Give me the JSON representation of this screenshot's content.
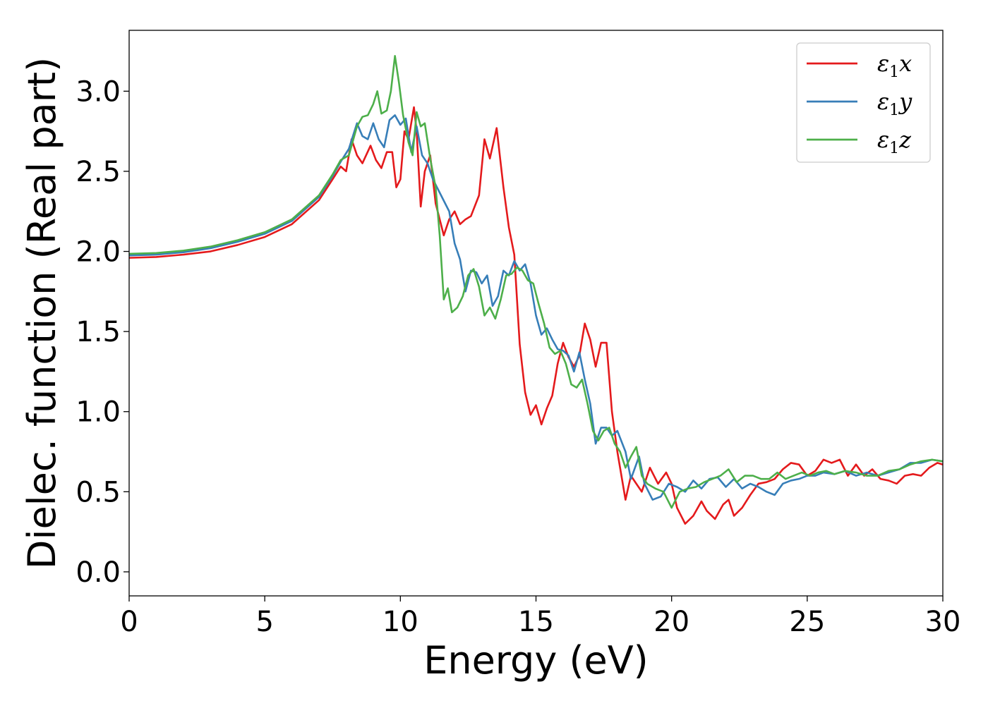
{
  "chart_data": {
    "type": "line",
    "title": "",
    "xlabel": "Energy (eV)",
    "ylabel": "Dielec. function (Real part)",
    "xlim": [
      0,
      30
    ],
    "ylim": [
      -0.15,
      3.38
    ],
    "xticks": [
      0,
      5,
      10,
      15,
      20,
      25,
      30
    ],
    "xtick_labels": [
      "0",
      "5",
      "10",
      "15",
      "20",
      "25",
      "30"
    ],
    "yticks": [
      0.0,
      0.5,
      1.0,
      1.5,
      2.0,
      2.5,
      3.0
    ],
    "ytick_labels": [
      "0.0",
      "0.5",
      "1.0",
      "1.5",
      "2.0",
      "2.5",
      "3.0"
    ],
    "grid": false,
    "legend_position": "top-right",
    "series": [
      {
        "name": "ε1x",
        "legend_base": "ε",
        "legend_sub": "1",
        "legend_suffix": "x",
        "color": "#e41a1c",
        "points": [
          [
            0,
            1.96
          ],
          [
            1,
            1.965
          ],
          [
            2,
            1.98
          ],
          [
            3,
            2.0
          ],
          [
            4,
            2.04
          ],
          [
            5,
            2.09
          ],
          [
            6,
            2.17
          ],
          [
            7,
            2.32
          ],
          [
            7.5,
            2.45
          ],
          [
            7.8,
            2.53
          ],
          [
            8.0,
            2.5
          ],
          [
            8.2,
            2.7
          ],
          [
            8.4,
            2.6
          ],
          [
            8.6,
            2.55
          ],
          [
            8.9,
            2.66
          ],
          [
            9.1,
            2.57
          ],
          [
            9.3,
            2.52
          ],
          [
            9.5,
            2.62
          ],
          [
            9.7,
            2.62
          ],
          [
            9.85,
            2.4
          ],
          [
            10.0,
            2.45
          ],
          [
            10.15,
            2.75
          ],
          [
            10.3,
            2.7
          ],
          [
            10.5,
            2.9
          ],
          [
            10.6,
            2.75
          ],
          [
            10.75,
            2.28
          ],
          [
            10.9,
            2.5
          ],
          [
            11.1,
            2.6
          ],
          [
            11.3,
            2.3
          ],
          [
            11.6,
            2.1
          ],
          [
            11.8,
            2.2
          ],
          [
            12.0,
            2.25
          ],
          [
            12.2,
            2.17
          ],
          [
            12.4,
            2.2
          ],
          [
            12.6,
            2.22
          ],
          [
            12.9,
            2.35
          ],
          [
            13.1,
            2.7
          ],
          [
            13.3,
            2.58
          ],
          [
            13.55,
            2.77
          ],
          [
            13.8,
            2.4
          ],
          [
            14.0,
            2.15
          ],
          [
            14.2,
            1.98
          ],
          [
            14.4,
            1.42
          ],
          [
            14.6,
            1.12
          ],
          [
            14.8,
            0.98
          ],
          [
            15.0,
            1.04
          ],
          [
            15.2,
            0.92
          ],
          [
            15.4,
            1.02
          ],
          [
            15.6,
            1.1
          ],
          [
            15.8,
            1.3
          ],
          [
            16.0,
            1.43
          ],
          [
            16.2,
            1.34
          ],
          [
            16.4,
            1.28
          ],
          [
            16.6,
            1.35
          ],
          [
            16.8,
            1.55
          ],
          [
            17.0,
            1.45
          ],
          [
            17.2,
            1.28
          ],
          [
            17.4,
            1.43
          ],
          [
            17.6,
            1.43
          ],
          [
            17.8,
            1.0
          ],
          [
            18.0,
            0.75
          ],
          [
            18.3,
            0.45
          ],
          [
            18.5,
            0.6
          ],
          [
            18.7,
            0.55
          ],
          [
            18.9,
            0.5
          ],
          [
            19.2,
            0.65
          ],
          [
            19.5,
            0.55
          ],
          [
            19.8,
            0.62
          ],
          [
            20.0,
            0.55
          ],
          [
            20.2,
            0.4
          ],
          [
            20.5,
            0.3
          ],
          [
            20.8,
            0.35
          ],
          [
            21.1,
            0.44
          ],
          [
            21.3,
            0.38
          ],
          [
            21.6,
            0.33
          ],
          [
            21.9,
            0.42
          ],
          [
            22.1,
            0.45
          ],
          [
            22.3,
            0.35
          ],
          [
            22.6,
            0.4
          ],
          [
            22.9,
            0.48
          ],
          [
            23.2,
            0.55
          ],
          [
            23.5,
            0.56
          ],
          [
            23.8,
            0.58
          ],
          [
            24.1,
            0.64
          ],
          [
            24.4,
            0.68
          ],
          [
            24.7,
            0.67
          ],
          [
            25.0,
            0.6
          ],
          [
            25.3,
            0.63
          ],
          [
            25.6,
            0.7
          ],
          [
            25.9,
            0.68
          ],
          [
            26.2,
            0.7
          ],
          [
            26.5,
            0.6
          ],
          [
            26.8,
            0.67
          ],
          [
            27.1,
            0.6
          ],
          [
            27.4,
            0.64
          ],
          [
            27.7,
            0.58
          ],
          [
            28.0,
            0.57
          ],
          [
            28.3,
            0.55
          ],
          [
            28.6,
            0.6
          ],
          [
            28.9,
            0.61
          ],
          [
            29.2,
            0.6
          ],
          [
            29.5,
            0.65
          ],
          [
            29.8,
            0.68
          ],
          [
            30.0,
            0.67
          ]
        ]
      },
      {
        "name": "ε1y",
        "legend_base": "ε",
        "legend_sub": "1",
        "legend_suffix": "y",
        "color": "#377eb8",
        "points": [
          [
            0,
            1.975
          ],
          [
            1,
            1.98
          ],
          [
            2,
            1.995
          ],
          [
            3,
            2.02
          ],
          [
            4,
            2.06
          ],
          [
            5,
            2.11
          ],
          [
            6,
            2.19
          ],
          [
            7,
            2.34
          ],
          [
            7.5,
            2.47
          ],
          [
            7.8,
            2.56
          ],
          [
            8.1,
            2.64
          ],
          [
            8.4,
            2.8
          ],
          [
            8.6,
            2.72
          ],
          [
            8.8,
            2.7
          ],
          [
            9.0,
            2.8
          ],
          [
            9.2,
            2.7
          ],
          [
            9.4,
            2.65
          ],
          [
            9.6,
            2.82
          ],
          [
            9.8,
            2.85
          ],
          [
            10.0,
            2.79
          ],
          [
            10.2,
            2.83
          ],
          [
            10.4,
            2.62
          ],
          [
            10.6,
            2.78
          ],
          [
            10.8,
            2.6
          ],
          [
            11.0,
            2.55
          ],
          [
            11.2,
            2.45
          ],
          [
            11.5,
            2.35
          ],
          [
            11.8,
            2.25
          ],
          [
            12.0,
            2.05
          ],
          [
            12.2,
            1.95
          ],
          [
            12.4,
            1.75
          ],
          [
            12.6,
            1.88
          ],
          [
            12.8,
            1.87
          ],
          [
            13.0,
            1.8
          ],
          [
            13.2,
            1.85
          ],
          [
            13.4,
            1.66
          ],
          [
            13.6,
            1.72
          ],
          [
            13.8,
            1.88
          ],
          [
            14.0,
            1.85
          ],
          [
            14.2,
            1.94
          ],
          [
            14.4,
            1.88
          ],
          [
            14.6,
            1.92
          ],
          [
            14.8,
            1.8
          ],
          [
            15.0,
            1.6
          ],
          [
            15.2,
            1.48
          ],
          [
            15.4,
            1.52
          ],
          [
            15.6,
            1.45
          ],
          [
            15.8,
            1.39
          ],
          [
            16.0,
            1.38
          ],
          [
            16.2,
            1.35
          ],
          [
            16.4,
            1.25
          ],
          [
            16.6,
            1.37
          ],
          [
            16.8,
            1.2
          ],
          [
            17.0,
            1.05
          ],
          [
            17.2,
            0.8
          ],
          [
            17.4,
            0.9
          ],
          [
            17.6,
            0.9
          ],
          [
            17.8,
            0.85
          ],
          [
            18.0,
            0.88
          ],
          [
            18.3,
            0.75
          ],
          [
            18.5,
            0.58
          ],
          [
            18.8,
            0.72
          ],
          [
            19.0,
            0.55
          ],
          [
            19.3,
            0.45
          ],
          [
            19.6,
            0.47
          ],
          [
            19.9,
            0.55
          ],
          [
            20.2,
            0.53
          ],
          [
            20.5,
            0.5
          ],
          [
            20.8,
            0.57
          ],
          [
            21.1,
            0.52
          ],
          [
            21.4,
            0.58
          ],
          [
            21.7,
            0.59
          ],
          [
            22.0,
            0.53
          ],
          [
            22.3,
            0.58
          ],
          [
            22.6,
            0.52
          ],
          [
            22.9,
            0.55
          ],
          [
            23.2,
            0.53
          ],
          [
            23.5,
            0.5
          ],
          [
            23.8,
            0.48
          ],
          [
            24.1,
            0.55
          ],
          [
            24.4,
            0.57
          ],
          [
            24.7,
            0.58
          ],
          [
            25.0,
            0.6
          ],
          [
            25.3,
            0.6
          ],
          [
            25.6,
            0.62
          ],
          [
            26.0,
            0.61
          ],
          [
            26.4,
            0.63
          ],
          [
            26.8,
            0.6
          ],
          [
            27.2,
            0.62
          ],
          [
            27.6,
            0.6
          ],
          [
            28.0,
            0.62
          ],
          [
            28.4,
            0.64
          ],
          [
            28.8,
            0.68
          ],
          [
            29.2,
            0.68
          ],
          [
            29.6,
            0.7
          ],
          [
            30.0,
            0.69
          ]
        ]
      },
      {
        "name": "ε1z",
        "legend_base": "ε",
        "legend_sub": "1",
        "legend_suffix": "z",
        "color": "#4daf4a",
        "points": [
          [
            0,
            1.985
          ],
          [
            1,
            1.99
          ],
          [
            2,
            2.005
          ],
          [
            3,
            2.03
          ],
          [
            4,
            2.07
          ],
          [
            5,
            2.12
          ],
          [
            6,
            2.2
          ],
          [
            7,
            2.35
          ],
          [
            7.5,
            2.48
          ],
          [
            7.8,
            2.57
          ],
          [
            8.1,
            2.6
          ],
          [
            8.4,
            2.78
          ],
          [
            8.6,
            2.84
          ],
          [
            8.8,
            2.85
          ],
          [
            9.0,
            2.92
          ],
          [
            9.15,
            3.0
          ],
          [
            9.3,
            2.86
          ],
          [
            9.5,
            2.88
          ],
          [
            9.65,
            3.0
          ],
          [
            9.8,
            3.22
          ],
          [
            9.95,
            3.05
          ],
          [
            10.1,
            2.85
          ],
          [
            10.3,
            2.68
          ],
          [
            10.45,
            2.6
          ],
          [
            10.6,
            2.87
          ],
          [
            10.75,
            2.78
          ],
          [
            10.9,
            2.8
          ],
          [
            11.1,
            2.58
          ],
          [
            11.3,
            2.4
          ],
          [
            11.45,
            2.1
          ],
          [
            11.6,
            1.7
          ],
          [
            11.75,
            1.77
          ],
          [
            11.9,
            1.62
          ],
          [
            12.1,
            1.65
          ],
          [
            12.3,
            1.72
          ],
          [
            12.5,
            1.85
          ],
          [
            12.7,
            1.89
          ],
          [
            12.9,
            1.78
          ],
          [
            13.1,
            1.6
          ],
          [
            13.3,
            1.65
          ],
          [
            13.5,
            1.58
          ],
          [
            13.7,
            1.7
          ],
          [
            13.9,
            1.85
          ],
          [
            14.1,
            1.86
          ],
          [
            14.3,
            1.9
          ],
          [
            14.5,
            1.88
          ],
          [
            14.7,
            1.82
          ],
          [
            14.9,
            1.8
          ],
          [
            15.1,
            1.67
          ],
          [
            15.3,
            1.55
          ],
          [
            15.5,
            1.4
          ],
          [
            15.7,
            1.36
          ],
          [
            15.9,
            1.38
          ],
          [
            16.1,
            1.3
          ],
          [
            16.3,
            1.17
          ],
          [
            16.5,
            1.15
          ],
          [
            16.7,
            1.2
          ],
          [
            16.9,
            1.05
          ],
          [
            17.1,
            0.88
          ],
          [
            17.3,
            0.82
          ],
          [
            17.5,
            0.88
          ],
          [
            17.7,
            0.9
          ],
          [
            17.9,
            0.8
          ],
          [
            18.1,
            0.75
          ],
          [
            18.3,
            0.65
          ],
          [
            18.5,
            0.72
          ],
          [
            18.7,
            0.78
          ],
          [
            18.9,
            0.6
          ],
          [
            19.1,
            0.55
          ],
          [
            19.4,
            0.52
          ],
          [
            19.7,
            0.5
          ],
          [
            20.0,
            0.4
          ],
          [
            20.3,
            0.5
          ],
          [
            20.6,
            0.52
          ],
          [
            20.9,
            0.53
          ],
          [
            21.2,
            0.56
          ],
          [
            21.5,
            0.58
          ],
          [
            21.8,
            0.6
          ],
          [
            22.1,
            0.64
          ],
          [
            22.4,
            0.56
          ],
          [
            22.7,
            0.6
          ],
          [
            23.0,
            0.6
          ],
          [
            23.3,
            0.58
          ],
          [
            23.6,
            0.58
          ],
          [
            23.9,
            0.62
          ],
          [
            24.2,
            0.58
          ],
          [
            24.5,
            0.6
          ],
          [
            24.8,
            0.62
          ],
          [
            25.1,
            0.6
          ],
          [
            25.4,
            0.62
          ],
          [
            25.7,
            0.63
          ],
          [
            26.0,
            0.61
          ],
          [
            26.4,
            0.63
          ],
          [
            26.8,
            0.62
          ],
          [
            27.2,
            0.6
          ],
          [
            27.6,
            0.6
          ],
          [
            28.0,
            0.63
          ],
          [
            28.4,
            0.64
          ],
          [
            28.8,
            0.67
          ],
          [
            29.2,
            0.69
          ],
          [
            29.6,
            0.7
          ],
          [
            30.0,
            0.69
          ]
        ]
      }
    ]
  }
}
